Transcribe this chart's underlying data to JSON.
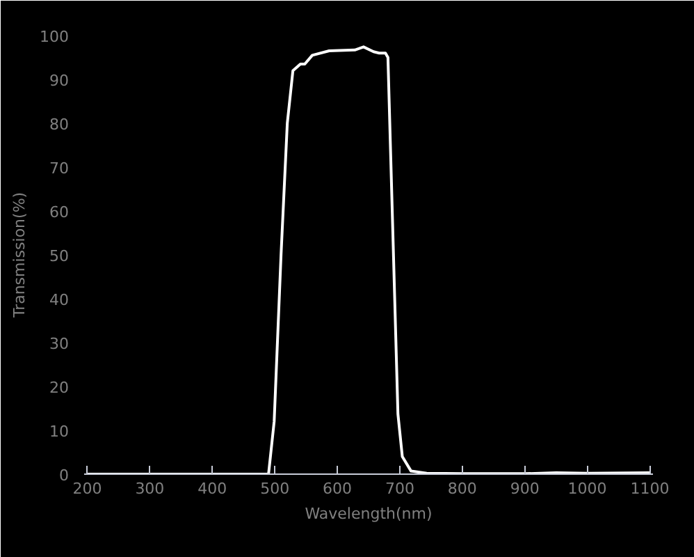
{
  "chart_data": {
    "type": "line",
    "xlabel": "Wavelength(nm)",
    "ylabel": "Transmission(%)",
    "xlim": [
      195,
      1105
    ],
    "ylim": [
      0,
      100
    ],
    "xticks": [
      200,
      300,
      400,
      500,
      600,
      700,
      800,
      900,
      1000,
      1100
    ],
    "yticks": [
      0,
      10,
      20,
      30,
      40,
      50,
      60,
      70,
      80,
      90,
      100
    ],
    "x": [
      200,
      300,
      400,
      490,
      499,
      510,
      520,
      529,
      541,
      548,
      560,
      587,
      628,
      642,
      658,
      667,
      677,
      681,
      697,
      704,
      718,
      743,
      800,
      900,
      950,
      1000,
      1100
    ],
    "series": [
      {
        "color": "#ffffff",
        "values": [
          0,
          0,
          0,
          0,
          12,
          50,
          80,
          92,
          93.5,
          93.5,
          95.5,
          96.5,
          96.7,
          97.4,
          96.3,
          96,
          96,
          95,
          13.7,
          4,
          0.7,
          0.2,
          0.1,
          0.1,
          0.3,
          0.2,
          0.3
        ]
      }
    ],
    "grid": false,
    "marker": "none",
    "line_style": "solid"
  }
}
